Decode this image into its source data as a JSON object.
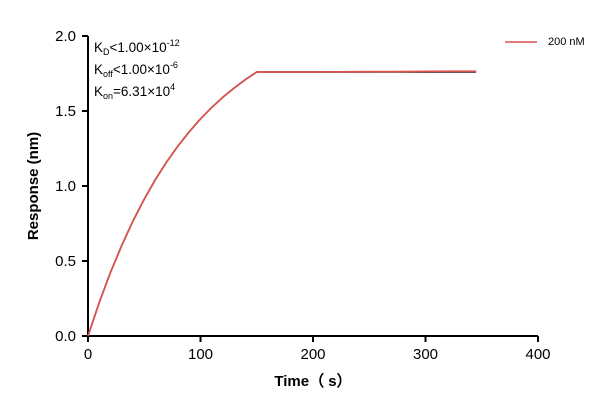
{
  "chart_data": {
    "type": "line",
    "xlabel": "Time（ s）",
    "ylabel": "Response (nm)",
    "xlim": [
      0,
      400
    ],
    "ylim": [
      0,
      2.0
    ],
    "xticks": [
      "0",
      "100",
      "200",
      "300",
      "400"
    ],
    "yticks": [
      "0.0",
      "0.5",
      "1.0",
      "1.5",
      "2.0"
    ],
    "grid": false,
    "legend_position": "top-right",
    "annotations": {
      "kd": {
        "k": "K",
        "sub": "D",
        "rel": "<",
        "val": "1.00×10",
        "exp": "-12"
      },
      "koff": {
        "k": "K",
        "sub": "off",
        "rel": "<",
        "val": "1.00×10",
        "exp": "-6"
      },
      "kon": {
        "k": "K",
        "sub": "on",
        "rel": "=",
        "val": "6.31×10",
        "exp": "4"
      }
    },
    "series": [
      {
        "name": "200 nM",
        "color": "#d9534f",
        "x": [
          0,
          10,
          20,
          30,
          40,
          50,
          60,
          70,
          80,
          90,
          100,
          110,
          120,
          130,
          140,
          150,
          175,
          200,
          225,
          250,
          275,
          300,
          325,
          345
        ],
        "y": [
          0,
          0.224,
          0.425,
          0.605,
          0.767,
          0.913,
          1.044,
          1.162,
          1.267,
          1.362,
          1.447,
          1.524,
          1.593,
          1.654,
          1.71,
          1.76,
          1.76,
          1.76,
          1.761,
          1.762,
          1.763,
          1.764,
          1.765,
          1.765
        ]
      },
      {
        "color": "#000000",
        "x": [
          0,
          10,
          20,
          30,
          40,
          50,
          60,
          70,
          80,
          90,
          100,
          110,
          120,
          130,
          140,
          150,
          345
        ],
        "y": [
          0,
          0.224,
          0.425,
          0.605,
          0.767,
          0.913,
          1.044,
          1.162,
          1.267,
          1.362,
          1.447,
          1.524,
          1.593,
          1.654,
          1.71,
          1.76,
          1.76
        ]
      }
    ]
  }
}
